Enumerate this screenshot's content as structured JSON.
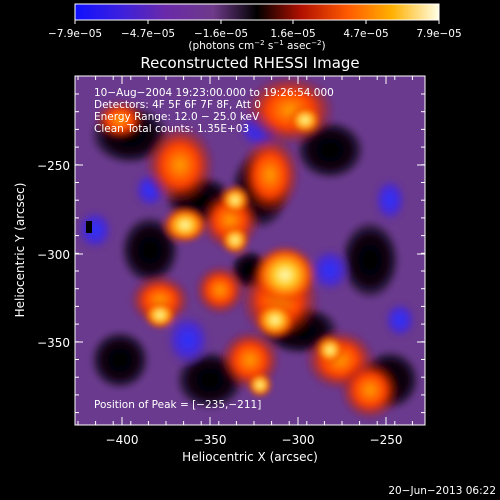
{
  "colorbar": {
    "tick_labels": [
      "−7.9e−05",
      "−4.7e−05",
      "−1.6e−05",
      "1.6e−05",
      "4.7e−05",
      "7.9e−05"
    ],
    "unit_label_prefix": "(photons cm",
    "unit_sup1": "−2",
    "unit_mid": " s",
    "unit_sup2": "−1",
    "unit_suffix": " asec",
    "unit_sup3": "−2",
    "unit_close": ")"
  },
  "plot": {
    "title": "Reconstructed RHESSI Image",
    "xlabel": "Heliocentric X (arcsec)",
    "ylabel": "Heliocentric Y (arcsec)",
    "x_ticks": [
      "−400",
      "−350",
      "−300",
      "−250"
    ],
    "y_ticks": [
      "−250",
      "−300",
      "−350"
    ],
    "info_lines": [
      "10−Aug−2004 19:23:00.000 to 19:26:54.000",
      "Detectors: 4F 5F 6F 7F 8F, Att 0",
      "Energy Range: 12.0 − 25.0 keV",
      "Clean     Total counts: 1.35E+03"
    ],
    "peak_label": "Position of Peak = [−235,−211]"
  },
  "footer": {
    "timestamp": "20−Jun−2013 06:22"
  }
}
